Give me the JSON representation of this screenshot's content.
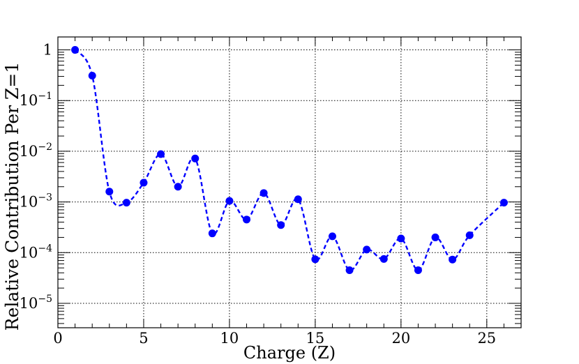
{
  "chart_data": {
    "type": "line",
    "title": "",
    "xlabel": "Charge (Z)",
    "ylabel": "Relative Contribution Per Z=1",
    "xlim": [
      0,
      27
    ],
    "ylim": [
      3.3e-06,
      1.8
    ],
    "y_scale": "log",
    "grid": true,
    "x_ticks": [
      {
        "value": 0,
        "label": "0"
      },
      {
        "value": 5,
        "label": "5"
      },
      {
        "value": 10,
        "label": "10"
      },
      {
        "value": 15,
        "label": "15"
      },
      {
        "value": 20,
        "label": "20"
      },
      {
        "value": 25,
        "label": "25"
      }
    ],
    "y_ticks": [
      {
        "value": 1,
        "base": "1",
        "exp": ""
      },
      {
        "value": 0.1,
        "base": "10",
        "exp": "−1"
      },
      {
        "value": 0.01,
        "base": "10",
        "exp": "−2"
      },
      {
        "value": 0.001,
        "base": "10",
        "exp": "−3"
      },
      {
        "value": 0.0001,
        "base": "10",
        "exp": "−4"
      },
      {
        "value": 1e-05,
        "base": "10",
        "exp": "−5"
      }
    ],
    "series": [
      {
        "color": "#0000ff",
        "line_style": "dashed",
        "marker": "circle",
        "x": [
          1,
          2,
          3,
          4,
          5,
          6,
          7,
          8,
          9,
          10,
          11,
          12,
          13,
          14,
          15,
          16,
          17,
          18,
          19,
          20,
          21,
          22,
          23,
          24,
          26
        ],
        "y": [
          1.0,
          0.31,
          0.0016,
          0.00097,
          0.0024,
          0.0088,
          0.002,
          0.0072,
          0.00024,
          0.00105,
          0.00045,
          0.0015,
          0.00035,
          0.00113,
          7.4e-05,
          0.00021,
          4.5e-05,
          0.000115,
          7.5e-05,
          0.00019,
          4.5e-05,
          0.0002,
          7.3e-05,
          0.00022,
          0.00097
        ]
      }
    ]
  }
}
